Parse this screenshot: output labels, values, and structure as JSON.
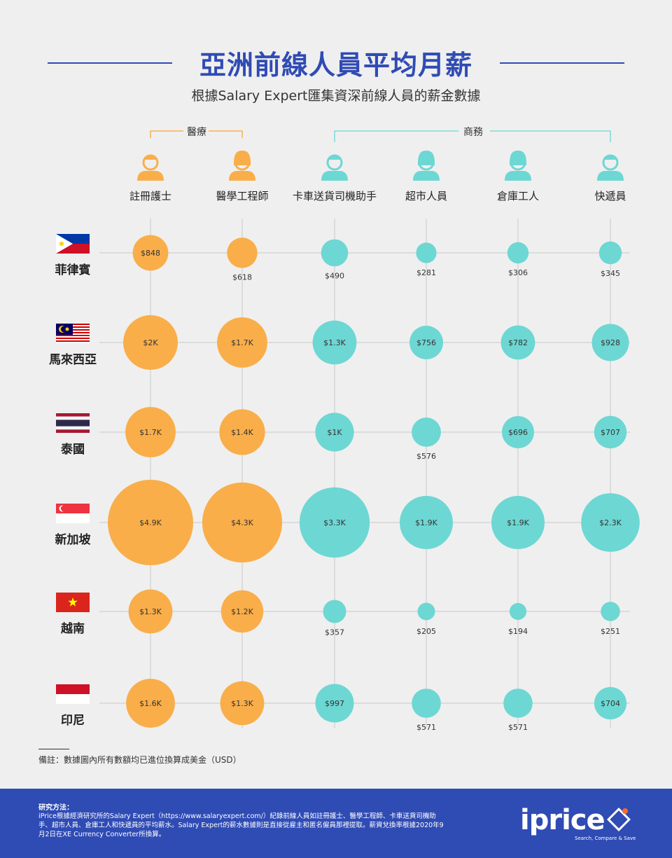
{
  "header": {
    "title": "亞洲前線人員平均月薪",
    "subtitle": "根據Salary Expert匯集資深前線人員的薪金數據"
  },
  "groups": [
    {
      "label": "醫療",
      "color": "#f7a73b"
    },
    {
      "label": "商務",
      "color": "#6dd6d2"
    }
  ],
  "colors": {
    "medical": "#f9ae4a",
    "business": "#6dd7d3",
    "grid": "#c8c8c8",
    "accent": "#2f4bb4"
  },
  "icons": [
    "nurse-icon",
    "engineer-icon",
    "driver-icon",
    "cashier-icon",
    "warehouse-worker-icon",
    "courier-icon"
  ],
  "chart_data": {
    "type": "bubble-matrix",
    "columns": [
      "註冊護士",
      "醫學工程師",
      "卡車送貨司機助手",
      "超市人員",
      "倉庫工人",
      "快遞員"
    ],
    "column_groups": [
      "醫療",
      "醫療",
      "商務",
      "商務",
      "商務",
      "商務"
    ],
    "rows": [
      "菲律賓",
      "馬來西亞",
      "泰國",
      "新加坡",
      "越南",
      "印尼"
    ],
    "flags": [
      "philippines-flag",
      "malaysia-flag",
      "thailand-flag",
      "singapore-flag",
      "vietnam-flag",
      "indonesia-flag"
    ],
    "values": [
      [
        848,
        618,
        490,
        281,
        306,
        345
      ],
      [
        2000,
        1700,
        1300,
        756,
        782,
        928
      ],
      [
        1700,
        1400,
        1000,
        576,
        696,
        707
      ],
      [
        4900,
        4300,
        3300,
        1900,
        1900,
        2300
      ],
      [
        1300,
        1200,
        357,
        205,
        194,
        251
      ],
      [
        1600,
        1300,
        997,
        571,
        571,
        704
      ]
    ],
    "labels": [
      [
        "$848",
        "$618",
        "$490",
        "$281",
        "$306",
        "$345"
      ],
      [
        "$2K",
        "$1.7K",
        "$1.3K",
        "$756",
        "$782",
        "$928"
      ],
      [
        "$1.7K",
        "$1.4K",
        "$1K",
        "$576",
        "$696",
        "$707"
      ],
      [
        "$4.9K",
        "$4.3K",
        "$3.3K",
        "$1.9K",
        "$1.9K",
        "$2.3K"
      ],
      [
        "$1.3K",
        "$1.2K",
        "$357",
        "$205",
        "$194",
        "$251"
      ],
      [
        "$1.6K",
        "$1.3K",
        "$997",
        "$571",
        "$571",
        "$704"
      ]
    ],
    "unit": "USD"
  },
  "footnote": "備註：數據圖內所有數額均已進位換算成美金（USD）",
  "footer": {
    "method_title": "研究方法：",
    "method_text": "iPrice根據經濟研究所的Salary Expert（https://www.salaryexpert.com/）紀錄前線人員如註冊護士、醫學工程師、卡車送貨司機助手、超市人員、倉庫工人和快遞員的平均薪水。Salary Expert的薪水數據則是直接從雇主和匿名僱員那裡提取。薪資兌換率根據2020年9月2日在XE Currency Converter所換算。",
    "brand": "iprice",
    "tagline": "Search, Compare & Save"
  }
}
